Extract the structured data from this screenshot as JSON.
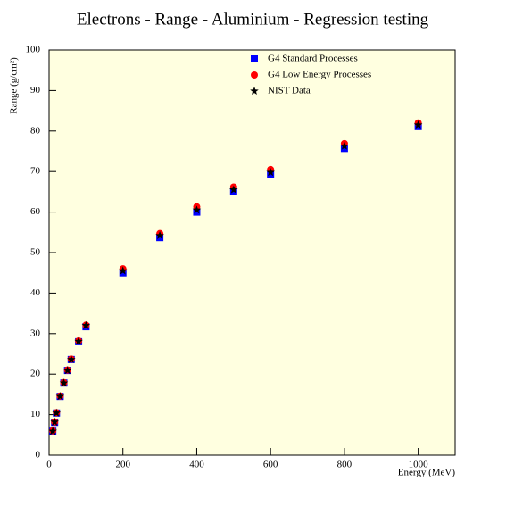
{
  "chart_data": {
    "type": "scatter",
    "title": "Electrons - Range - Aluminium - Regression testing",
    "xlabel": "Energy (MeV)",
    "ylabel": "Range (g/cm²)",
    "xlim": [
      0,
      1100
    ],
    "ylim": [
      0,
      100
    ],
    "xticks": [
      0,
      200,
      400,
      600,
      800,
      1000
    ],
    "yticks": [
      0,
      10,
      20,
      30,
      40,
      50,
      60,
      70,
      80,
      90,
      100
    ],
    "background": "#ffffe0",
    "series": [
      {
        "name": "G4 Standard Processes",
        "color": "#0000ff",
        "marker": "square",
        "x": [
          10,
          15,
          20,
          30,
          40,
          50,
          60,
          80,
          100,
          200,
          300,
          400,
          500,
          600,
          800,
          1000
        ],
        "values": [
          5.9,
          8.1,
          10.4,
          14.5,
          17.8,
          20.9,
          23.6,
          28.0,
          31.7,
          45.0,
          53.7,
          60.0,
          65.0,
          69.2,
          75.7,
          81.1
        ]
      },
      {
        "name": "G4 Low Energy Processes",
        "color": "#ff0000",
        "marker": "circle",
        "x": [
          10,
          15,
          20,
          30,
          40,
          50,
          60,
          80,
          100,
          200,
          300,
          400,
          500,
          600,
          800,
          1000
        ],
        "values": [
          6.0,
          8.2,
          10.5,
          14.6,
          17.9,
          21.0,
          23.7,
          28.2,
          32.1,
          46.0,
          54.7,
          61.3,
          66.2,
          70.5,
          76.9,
          82.0
        ]
      },
      {
        "name": "NIST Data",
        "color": "#000000",
        "marker": "star",
        "x": [
          10,
          15,
          20,
          30,
          40,
          50,
          60,
          80,
          100,
          200,
          300,
          400,
          500,
          600,
          800,
          1000
        ],
        "values": [
          5.9,
          8.2,
          10.4,
          14.5,
          17.8,
          20.9,
          23.6,
          28.1,
          32.0,
          45.5,
          54.2,
          60.5,
          65.5,
          69.8,
          76.3,
          81.5
        ]
      }
    ]
  }
}
